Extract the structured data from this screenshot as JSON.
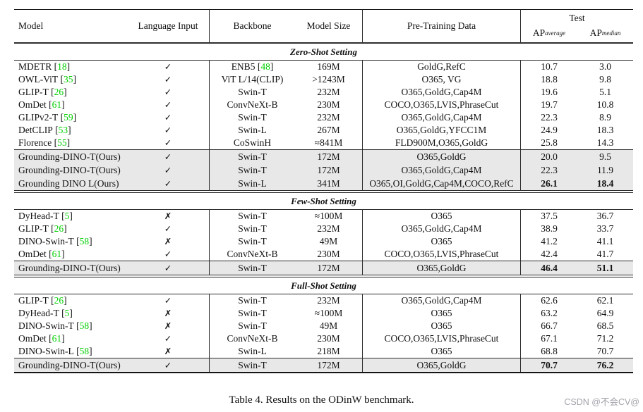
{
  "page": {
    "caption": "Table 4. Results on the ODinW benchmark.",
    "watermark": "CSDN @不会CV@"
  },
  "colors": {
    "cite_green": "#00CF00",
    "row_shade": "#E8E8E8",
    "watermark_gray": "#A2A2AA"
  },
  "header": {
    "model": "Model",
    "language_input": "Language Input",
    "backbone": "Backbone",
    "model_size": "Model Size",
    "pretraining": "Pre-Training Data",
    "test": "Test",
    "ap_average": {
      "base": "AP",
      "sub": "average"
    },
    "ap_median": {
      "base": "AP",
      "sub": "median"
    }
  },
  "sections": [
    {
      "title": "Zero-Shot Setting",
      "rows": [
        {
          "model": "MDETR",
          "cite": "18",
          "lang": "✓",
          "backbone": "ENB5",
          "backbone_cite": "48",
          "size": "169M",
          "data": "GoldG,RefC",
          "ap_avg": "10.7",
          "ap_med": "3.0",
          "bold": false
        },
        {
          "model": "OWL-ViT",
          "cite": "35",
          "lang": "✓",
          "backbone": "ViT L/14(CLIP)",
          "backbone_cite": null,
          "size": ">1243M",
          "data": "O365, VG",
          "ap_avg": "18.8",
          "ap_med": "9.8",
          "bold": false
        },
        {
          "model": "GLIP-T",
          "cite": "26",
          "lang": "✓",
          "backbone": "Swin-T",
          "backbone_cite": null,
          "size": "232M",
          "data": "O365,GoldG,Cap4M",
          "ap_avg": "19.6",
          "ap_med": "5.1",
          "bold": false
        },
        {
          "model": "OmDet",
          "cite": "61",
          "lang": "✓",
          "backbone": "ConvNeXt-B",
          "backbone_cite": null,
          "size": "230M",
          "data": "COCO,O365,LVIS,PhraseCut",
          "ap_avg": "19.7",
          "ap_med": "10.8",
          "bold": false
        },
        {
          "model": "GLIPv2-T",
          "cite": "59",
          "lang": "✓",
          "backbone": "Swin-T",
          "backbone_cite": null,
          "size": "232M",
          "data": "O365,GoldG,Cap4M",
          "ap_avg": "22.3",
          "ap_med": "8.9",
          "bold": false
        },
        {
          "model": "DetCLIP",
          "cite": "53",
          "lang": "✓",
          "backbone": "Swin-L",
          "backbone_cite": null,
          "size": "267M",
          "data": "O365,GoldG,YFCC1M",
          "ap_avg": "24.9",
          "ap_med": "18.3",
          "bold": false
        },
        {
          "model": "Florence",
          "cite": "55",
          "lang": "✓",
          "backbone": "CoSwinH",
          "backbone_cite": null,
          "size": "≈841M",
          "data": "FLD900M,O365,GoldG",
          "ap_avg": "25.8",
          "ap_med": "14.3",
          "bold": false
        }
      ],
      "ours": [
        {
          "model": "Grounding-DINO-T(Ours)",
          "cite": null,
          "lang": "✓",
          "backbone": "Swin-T",
          "backbone_cite": null,
          "size": "172M",
          "data": "O365,GoldG",
          "ap_avg": "20.0",
          "ap_med": "9.5",
          "bold": false
        },
        {
          "model": "Grounding-DINO-T(Ours)",
          "cite": null,
          "lang": "✓",
          "backbone": "Swin-T",
          "backbone_cite": null,
          "size": "172M",
          "data": "O365,GoldG,Cap4M",
          "ap_avg": "22.3",
          "ap_med": "11.9",
          "bold": false
        },
        {
          "model": "Grounding DINO L(Ours)",
          "cite": null,
          "lang": "✓",
          "backbone": "Swin-L",
          "backbone_cite": null,
          "size": "341M",
          "data": "O365,OI,GoldG,Cap4M,COCO,RefC",
          "ap_avg": "26.1",
          "ap_med": "18.4",
          "bold": true
        }
      ]
    },
    {
      "title": "Few-Shot Setting",
      "rows": [
        {
          "model": "DyHead-T",
          "cite": "5",
          "lang": "✗",
          "backbone": "Swin-T",
          "backbone_cite": null,
          "size": "≈100M",
          "data": "O365",
          "ap_avg": "37.5",
          "ap_med": "36.7",
          "bold": false
        },
        {
          "model": "GLIP-T",
          "cite": "26",
          "lang": "✓",
          "backbone": "Swin-T",
          "backbone_cite": null,
          "size": "232M",
          "data": "O365,GoldG,Cap4M",
          "ap_avg": "38.9",
          "ap_med": "33.7",
          "bold": false
        },
        {
          "model": "DINO-Swin-T",
          "cite": "58",
          "lang": "✗",
          "backbone": "Swin-T",
          "backbone_cite": null,
          "size": "49M",
          "data": "O365",
          "ap_avg": "41.2",
          "ap_med": "41.1",
          "bold": false
        },
        {
          "model": "OmDet",
          "cite": "61",
          "lang": "✓",
          "backbone": "ConvNeXt-B",
          "backbone_cite": null,
          "size": "230M",
          "data": "COCO,O365,LVIS,PhraseCut",
          "ap_avg": "42.4",
          "ap_med": "41.7",
          "bold": false
        }
      ],
      "ours": [
        {
          "model": "Grounding-DINO-T(Ours)",
          "cite": null,
          "lang": "✓",
          "backbone": "Swin-T",
          "backbone_cite": null,
          "size": "172M",
          "data": "O365,GoldG",
          "ap_avg": "46.4",
          "ap_med": "51.1",
          "bold": true
        }
      ]
    },
    {
      "title": "Full-Shot Setting",
      "rows": [
        {
          "model": "GLIP-T",
          "cite": "26",
          "lang": "✓",
          "backbone": "Swin-T",
          "backbone_cite": null,
          "size": "232M",
          "data": "O365,GoldG,Cap4M",
          "ap_avg": "62.6",
          "ap_med": "62.1",
          "bold": false
        },
        {
          "model": "DyHead-T",
          "cite": "5",
          "lang": "✗",
          "backbone": "Swin-T",
          "backbone_cite": null,
          "size": "≈100M",
          "data": "O365",
          "ap_avg": "63.2",
          "ap_med": "64.9",
          "bold": false
        },
        {
          "model": "DINO-Swin-T",
          "cite": "58",
          "lang": "✗",
          "backbone": "Swin-T",
          "backbone_cite": null,
          "size": "49M",
          "data": "O365",
          "ap_avg": "66.7",
          "ap_med": "68.5",
          "bold": false
        },
        {
          "model": "OmDet",
          "cite": "61",
          "lang": "✓",
          "backbone": "ConvNeXt-B",
          "backbone_cite": null,
          "size": "230M",
          "data": "COCO,O365,LVIS,PhraseCut",
          "ap_avg": "67.1",
          "ap_med": "71.2",
          "bold": false
        },
        {
          "model": "DINO-Swin-L",
          "cite": "58",
          "lang": "✗",
          "backbone": "Swin-L",
          "backbone_cite": null,
          "size": "218M",
          "data": "O365",
          "ap_avg": "68.8",
          "ap_med": "70.7",
          "bold": false
        }
      ],
      "ours": [
        {
          "model": "Grounding-DINO-T(Ours)",
          "cite": null,
          "lang": "✓",
          "backbone": "Swin-T",
          "backbone_cite": null,
          "size": "172M",
          "data": "O365,GoldG",
          "ap_avg": "70.7",
          "ap_med": "76.2",
          "bold": true
        }
      ]
    }
  ]
}
